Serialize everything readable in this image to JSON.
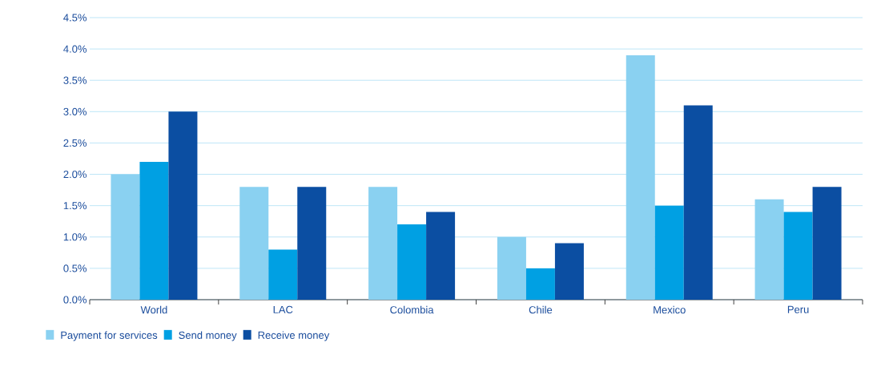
{
  "chart_data": {
    "type": "bar",
    "categories": [
      "World",
      "LAC",
      "Colombia",
      "Chile",
      "Mexico",
      "Peru"
    ],
    "series": [
      {
        "name": "Payment for services",
        "color": "#8ad1f1",
        "values": [
          2.0,
          1.8,
          1.8,
          1.0,
          3.9,
          1.6
        ]
      },
      {
        "name": "Send money",
        "color": "#00a0e3",
        "values": [
          2.2,
          0.8,
          1.2,
          0.5,
          1.5,
          1.4
        ]
      },
      {
        "name": "Receive money",
        "color": "#0b4ea2",
        "values": [
          3.0,
          1.8,
          1.4,
          0.9,
          3.1,
          1.8
        ]
      }
    ],
    "ylim": [
      0,
      4.5
    ],
    "yticks": [
      {
        "value": 0,
        "label": "0.0%"
      },
      {
        "value": 0.5,
        "label": "0.5%"
      },
      {
        "value": 1,
        "label": "1.0%"
      },
      {
        "value": 1.5,
        "label": "1.5%"
      },
      {
        "value": 2,
        "label": "2.0%"
      },
      {
        "value": 2.5,
        "label": "2.5%"
      },
      {
        "value": 3,
        "label": "3.0%"
      },
      {
        "value": 3.5,
        "label": "3.5%"
      },
      {
        "value": 4,
        "label": "4.0%"
      },
      {
        "value": 4.5,
        "label": "4.5%"
      }
    ],
    "grid": "y",
    "legend": "bottom left"
  }
}
